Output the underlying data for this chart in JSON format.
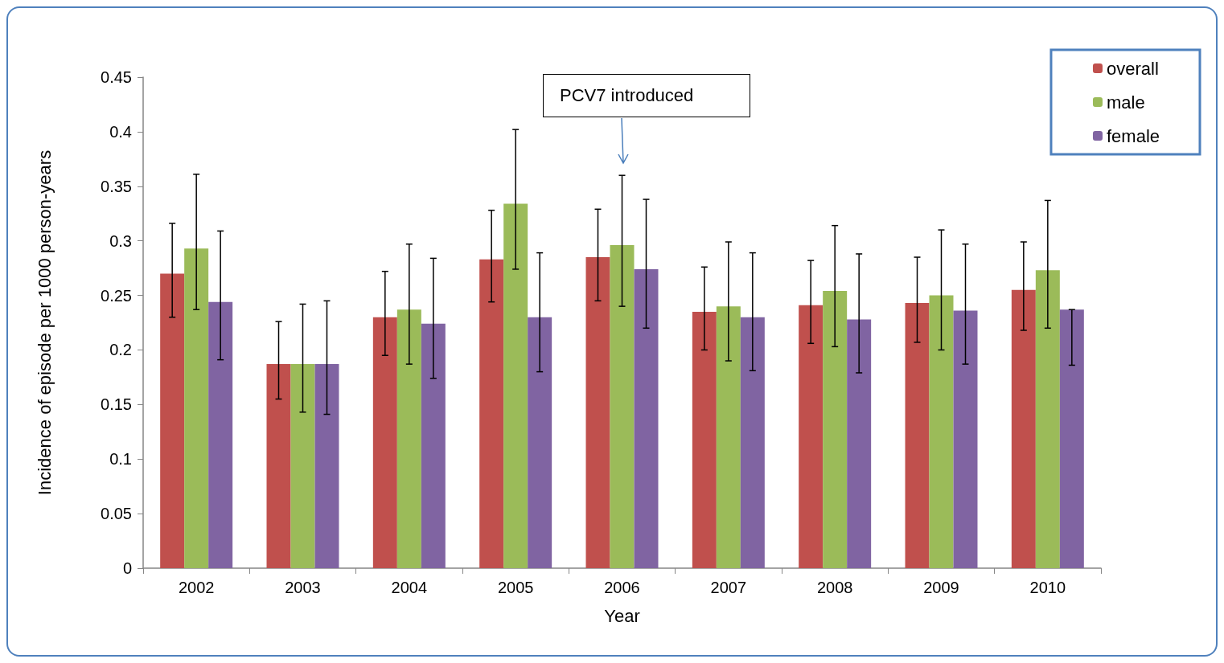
{
  "chart_data": {
    "type": "bar",
    "xlabel": "Year",
    "ylabel": "Incidence of episode per 1000 person-years",
    "categories": [
      "2002",
      "2003",
      "2004",
      "2005",
      "2006",
      "2007",
      "2008",
      "2009",
      "2010"
    ],
    "series": [
      {
        "name": "overall",
        "color": "#c0504d",
        "values": [
          0.27,
          0.187,
          0.23,
          0.283,
          0.285,
          0.235,
          0.241,
          0.243,
          0.255
        ],
        "errors": [
          [
            0.23,
            0.316
          ],
          [
            0.155,
            0.226
          ],
          [
            0.195,
            0.272
          ],
          [
            0.244,
            0.328
          ],
          [
            0.245,
            0.329
          ],
          [
            0.2,
            0.276
          ],
          [
            0.206,
            0.282
          ],
          [
            0.207,
            0.285
          ],
          [
            0.218,
            0.299
          ]
        ]
      },
      {
        "name": "male",
        "color": "#9bbb59",
        "values": [
          0.293,
          0.187,
          0.237,
          0.334,
          0.296,
          0.24,
          0.254,
          0.25,
          0.273
        ],
        "errors": [
          [
            0.237,
            0.361
          ],
          [
            0.143,
            0.242
          ],
          [
            0.187,
            0.297
          ],
          [
            0.274,
            0.402
          ],
          [
            0.24,
            0.36
          ],
          [
            0.19,
            0.299
          ],
          [
            0.203,
            0.314
          ],
          [
            0.2,
            0.31
          ],
          [
            0.22,
            0.337
          ]
        ]
      },
      {
        "name": "female",
        "color": "#8064a2",
        "values": [
          0.244,
          0.187,
          0.224,
          0.23,
          0.274,
          0.23,
          0.228,
          0.236,
          0.237
        ],
        "errors": [
          [
            0.191,
            0.309
          ],
          [
            0.141,
            0.245
          ],
          [
            0.174,
            0.284
          ],
          [
            0.18,
            0.289
          ],
          [
            0.22,
            0.338
          ],
          [
            0.181,
            0.289
          ],
          [
            0.179,
            0.288
          ],
          [
            0.187,
            0.297
          ],
          [
            0.186,
            0.237
          ]
        ]
      }
    ],
    "ylim": [
      0,
      0.45
    ],
    "yticks": [
      0,
      0.05,
      0.1,
      0.15,
      0.2,
      0.25,
      0.3,
      0.35,
      0.4,
      0.45
    ],
    "grid": false,
    "legend": "top right",
    "annotations": [
      "PCV7 introduced"
    ]
  }
}
